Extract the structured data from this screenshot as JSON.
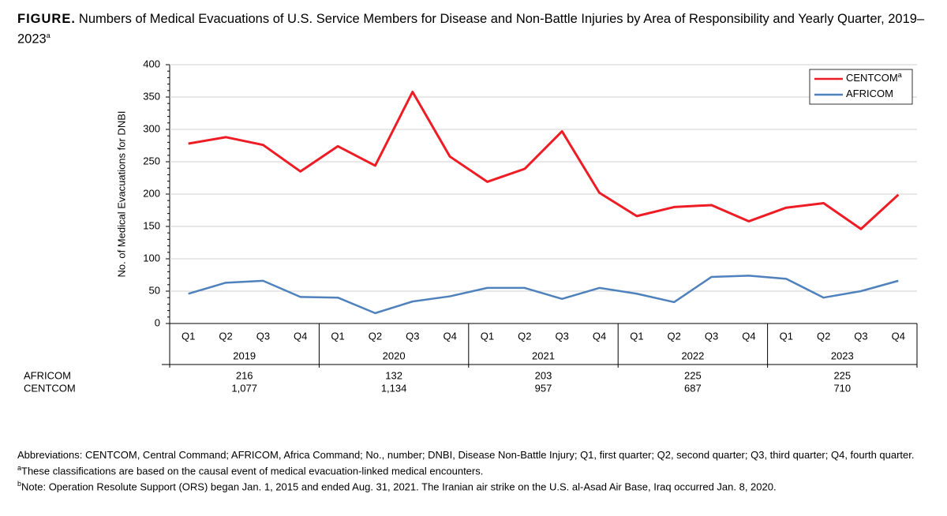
{
  "chart_data": {
    "type": "line",
    "title_prefix": "FIGURE.",
    "title": "Numbers of Medical Evacuations of U.S. Service Members for Disease and Non-Battle Injuries by Area of Responsibility and Yearly Quarter, 2019–2023",
    "title_marker": "a",
    "y_label": "No. of Medical Evacuations for DNBI",
    "categories": [
      "Q1",
      "Q2",
      "Q3",
      "Q4",
      "Q1",
      "Q2",
      "Q3",
      "Q4",
      "Q1",
      "Q2",
      "Q3",
      "Q4",
      "Q1",
      "Q2",
      "Q3",
      "Q4",
      "Q1",
      "Q2",
      "Q3",
      "Q4"
    ],
    "x_groups": [
      "2019",
      "2020",
      "2021",
      "2022",
      "2023"
    ],
    "series": [
      {
        "name": "CENTCOM",
        "legend_marker": "a",
        "color": "#ee1c25",
        "values": [
          278,
          288,
          276,
          235,
          274,
          244,
          358,
          258,
          219,
          239,
          297,
          202,
          166,
          180,
          183,
          158,
          179,
          186,
          146,
          199
        ]
      },
      {
        "name": "AFRICOM",
        "color": "#4f81bd",
        "values": [
          46,
          63,
          66,
          41,
          40,
          16,
          34,
          42,
          55,
          55,
          38,
          55,
          46,
          33,
          72,
          74,
          69,
          40,
          50,
          66
        ]
      }
    ],
    "annual_totals": [
      {
        "name": "AFRICOM",
        "color": "#4f81bd",
        "values": [
          216,
          132,
          203,
          225,
          225
        ]
      },
      {
        "name": "CENTCOM",
        "color": "#ee1c25",
        "values": [
          1077,
          1134,
          957,
          687,
          710
        ],
        "value_labels": [
          "1,077",
          "1,134",
          "957",
          "687",
          "710"
        ]
      }
    ],
    "ylim": [
      0,
      400
    ],
    "yticks": [
      0,
      50,
      100,
      150,
      200,
      250,
      300,
      350,
      400
    ],
    "grid": true,
    "legend_position": "top-right",
    "abbreviations": "Abbreviations: CENTCOM, Central Command; AFRICOM, Africa Command; No., number; DNBI, Disease Non-Battle Injury; Q1, first quarter; Q2, second quarter; Q3, third quarter; Q4, fourth quarter.",
    "footnotes": [
      {
        "marker": "a",
        "text": "These classifications are based on the causal event of medical evacuation-linked medical encounters."
      },
      {
        "marker": "b",
        "text": "Note: Operation Resolute Support (ORS) began Jan. 1, 2015 and ended Aug. 31, 2021. The Iranian air strike on the U.S. al-Asad Air Base, Iraq occurred Jan. 8, 2020."
      }
    ]
  }
}
